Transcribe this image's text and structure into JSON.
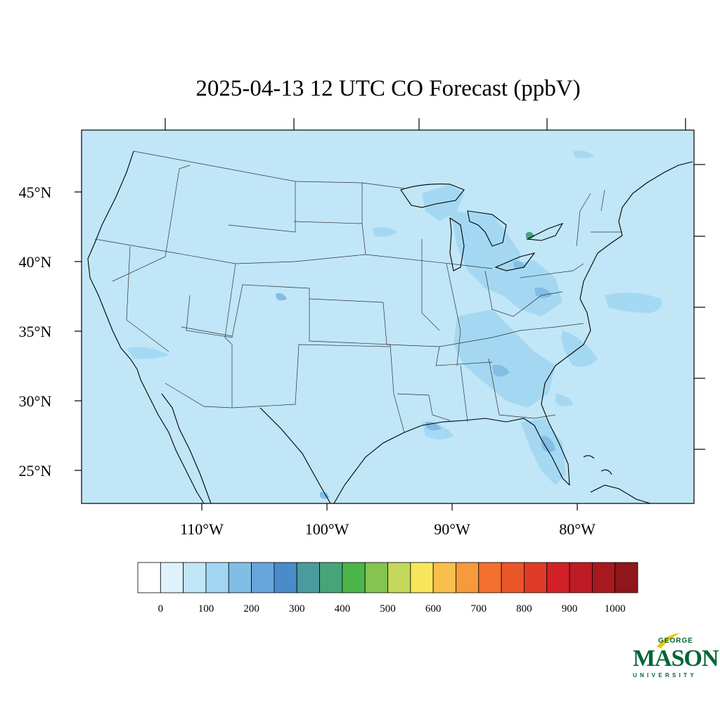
{
  "title": "2025-04-13 12 UTC CO Forecast (ppbV)",
  "map": {
    "background_color": "#c0e6f8",
    "latitude_labels": [
      "45°N",
      "40°N",
      "35°N",
      "30°N",
      "25°N"
    ],
    "longitude_labels": [
      "110°W",
      "100°W",
      "90°W",
      "80°W"
    ]
  },
  "colorbar": {
    "colors": [
      "#ffffff",
      "#dff2fb",
      "#c0e6f8",
      "#a0d6f2",
      "#82bde6",
      "#67a6db",
      "#4a8bc9",
      "#4a9b9e",
      "#45a47a",
      "#4bb54a",
      "#85c451",
      "#c4d85b",
      "#f7e65a",
      "#f8bf4c",
      "#f69a3c",
      "#f3702e",
      "#ea5628",
      "#e03b26",
      "#d22028",
      "#bd1c24",
      "#a8191f",
      "#8f161a"
    ],
    "labels": [
      "0",
      "100",
      "200",
      "300",
      "400",
      "500",
      "600",
      "700",
      "800",
      "900",
      "1000"
    ]
  },
  "logo": {
    "top": "GEORGE",
    "main": "MASON",
    "bottom": "UNIVERSITY"
  }
}
